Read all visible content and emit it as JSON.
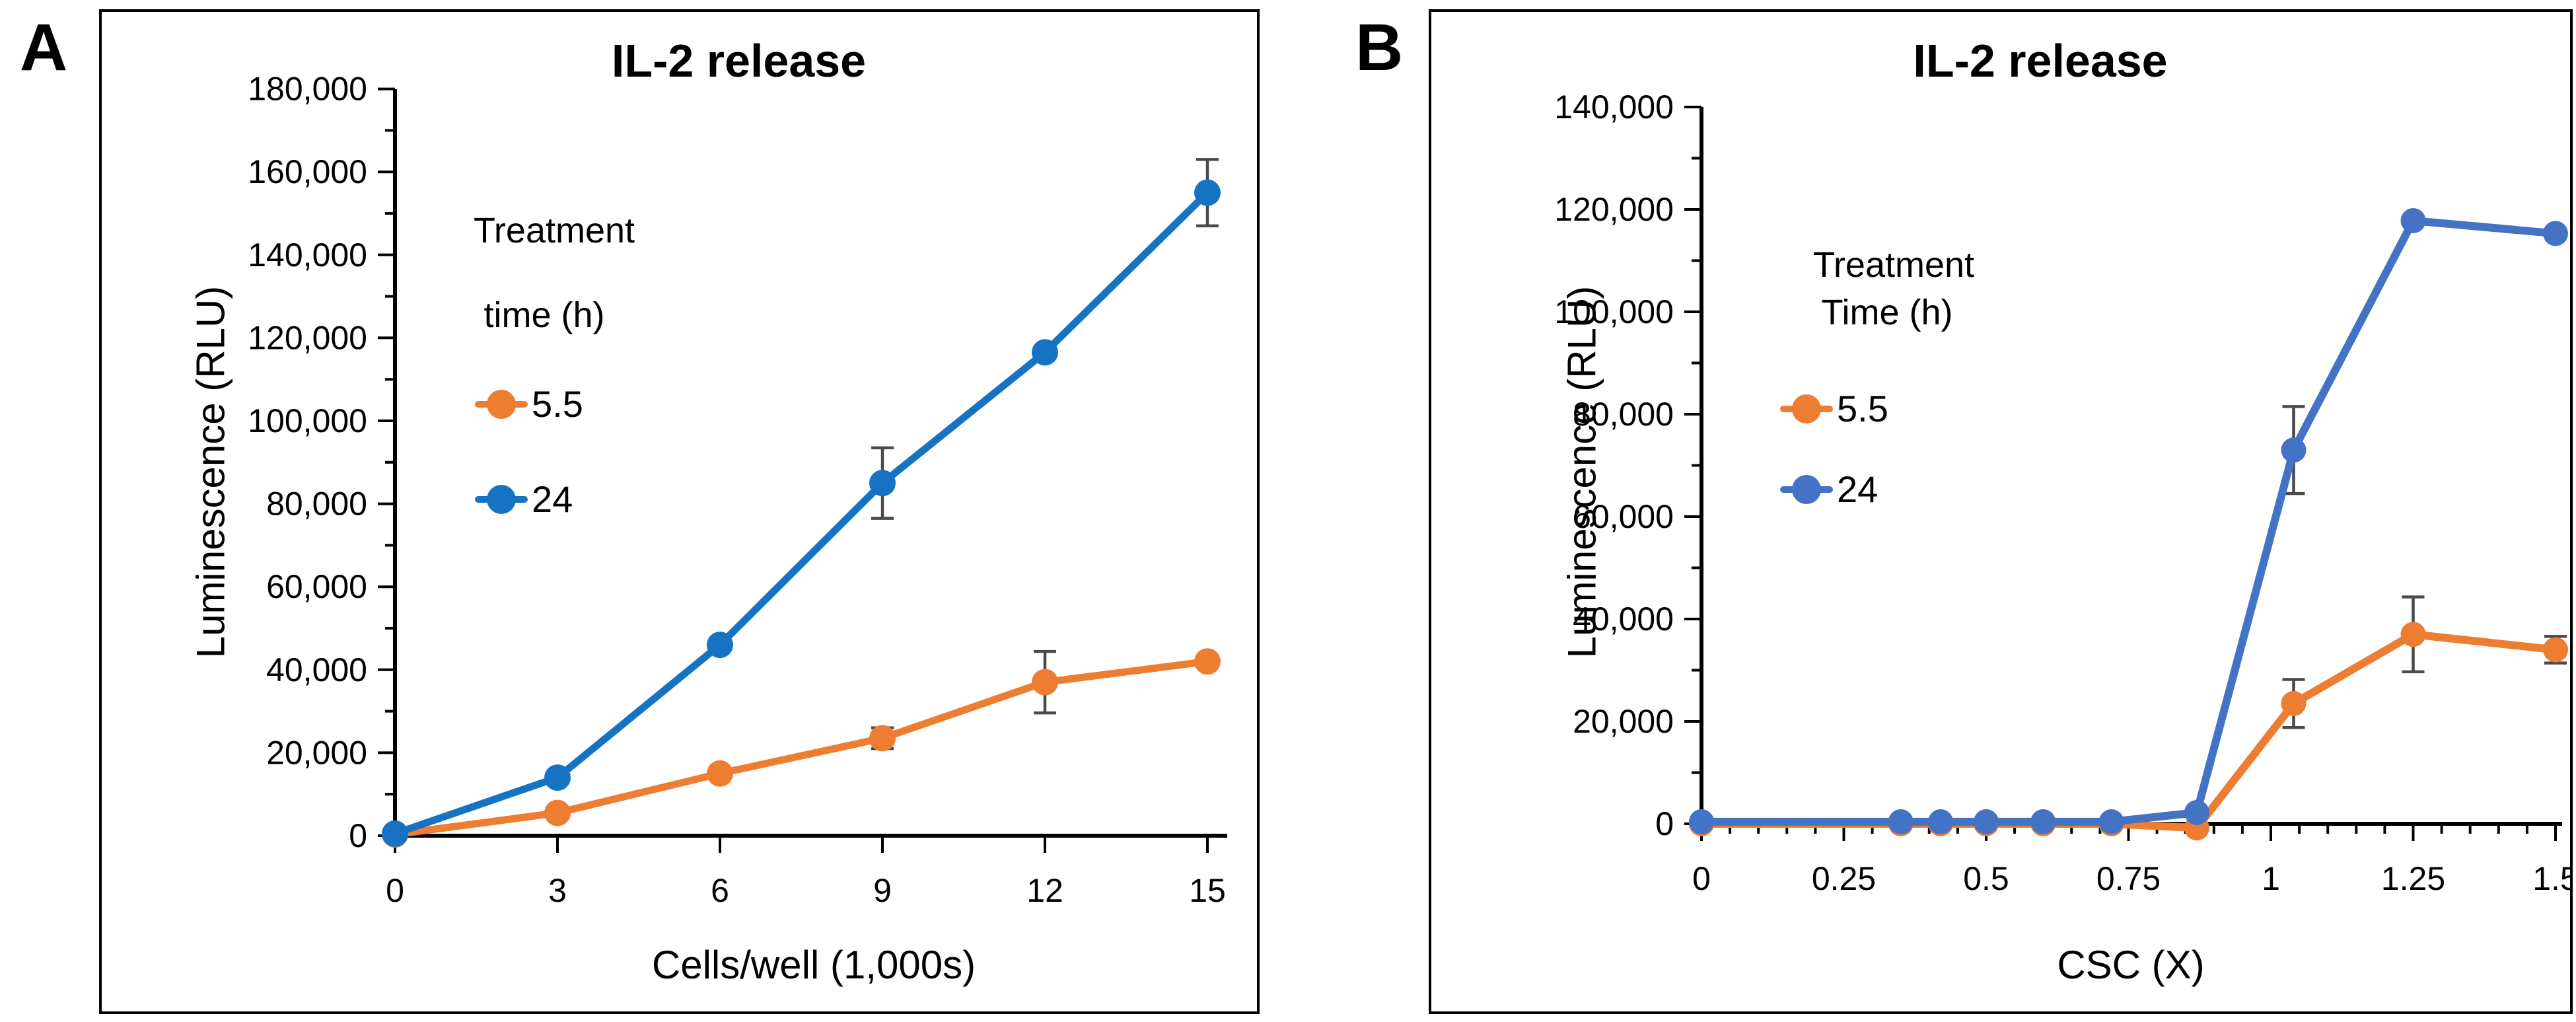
{
  "figure": {
    "background": "#ffffff",
    "frame_color": "#000000",
    "error_bar_color": "#4a4a4a"
  },
  "panels": [
    {
      "label": "A",
      "title": "IL-2 release",
      "y_axis_title": "Luminescence (RLU)",
      "x_axis_title": "Cells/well (1,000s)",
      "legend": {
        "line1": "Treatment",
        "line2": "time (h)",
        "items": [
          {
            "label": "5.5"
          },
          {
            "label": "24"
          }
        ]
      }
    },
    {
      "label": "B",
      "title": "IL-2 release",
      "y_axis_title": "Luminescence (RLU)",
      "x_axis_title": "CSC (X)",
      "legend": {
        "line1": "Treatment",
        "line2": "Time (h)",
        "items": [
          {
            "label": "5.5"
          },
          {
            "label": "24"
          }
        ]
      }
    }
  ],
  "chart_data": [
    {
      "type": "line",
      "title": "IL-2 release",
      "xlabel": "Cells/well (1,000s)",
      "ylabel": "Luminescence (RLU)",
      "xlim": [
        0,
        15.6
      ],
      "ylim": [
        0,
        180000
      ],
      "grid": false,
      "legend_position": "upper-left-inside",
      "legend_title": "Treatment time (h)",
      "xticks": [
        0,
        3,
        6,
        9,
        12,
        15
      ],
      "xtick_labels": [
        "0",
        "3",
        "6",
        "9",
        "12",
        "15"
      ],
      "ytick_major_step": 20000,
      "ytick_minor_step": 10000,
      "ytick_labels": [
        "0",
        "20,000",
        "40,000",
        "60,000",
        "80,000",
        "100,000",
        "120,000",
        "140,000",
        "160,000",
        "180,000"
      ],
      "x": [
        0,
        3,
        6,
        9,
        12,
        15
      ],
      "series": [
        {
          "name": "5.5",
          "color": "#ED7D31",
          "values": [
            300,
            5500,
            15000,
            23500,
            37000,
            42000
          ],
          "errors": [
            0,
            0,
            0,
            2500,
            7400,
            0
          ]
        },
        {
          "name": "24",
          "color": "#1673C4",
          "values": [
            500,
            14000,
            46000,
            85000,
            116500,
            155000
          ],
          "errors": [
            0,
            0,
            0,
            8500,
            0,
            8000
          ]
        }
      ]
    },
    {
      "type": "line",
      "title": "IL-2 release",
      "xlabel": "CSC (X)",
      "ylabel": "Luminescence (RLU)",
      "xlim": [
        0,
        1.51
      ],
      "ylim": [
        0,
        140000
      ],
      "grid": false,
      "legend_position": "upper-left-inside",
      "legend_title": "Treatment Time (h)",
      "xtick_major_step": 0.25,
      "xtick_minor_step": 0.05,
      "xtick_labels": [
        "0",
        "0.25",
        "0.5",
        "0.75",
        "1",
        "1.25",
        "1.5"
      ],
      "ytick_major_step": 20000,
      "ytick_minor_step": 10000,
      "ytick_labels": [
        "0",
        "20,000",
        "40,000",
        "60,000",
        "80,000",
        "100,000",
        "120,000",
        "140,000"
      ],
      "x": [
        0,
        0.35,
        0.42,
        0.5,
        0.6,
        0.72,
        0.87,
        1.04,
        1.25,
        1.5
      ],
      "series": [
        {
          "name": "5.5",
          "color": "#ED7D31",
          "values": [
            0,
            0,
            0,
            0,
            0,
            0,
            -800,
            23500,
            37000,
            34000
          ],
          "errors": [
            0,
            0,
            0,
            0,
            0,
            0,
            0,
            4700,
            7300,
            2600
          ]
        },
        {
          "name": "24",
          "color": "#4472C4",
          "values": [
            400,
            400,
            400,
            400,
            400,
            400,
            2200,
            73000,
            117800,
            115300
          ],
          "errors": [
            0,
            0,
            0,
            0,
            0,
            0,
            0,
            8500,
            0,
            0
          ]
        }
      ]
    }
  ]
}
